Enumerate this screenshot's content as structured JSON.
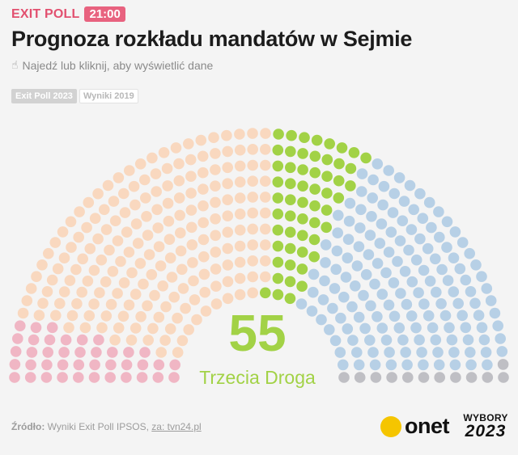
{
  "header": {
    "exit_label": "EXIT POLL",
    "time": "21:00",
    "title": "Prognoza rozkładu mandatów w Sejmie",
    "hint": "Najedź lub kliknij, aby wyświetlić dane",
    "hint_icon": "pointer-hand-icon"
  },
  "tabs": [
    {
      "label": "Exit Poll 2023",
      "active": true
    },
    {
      "label": "Wyniki 2019",
      "active": false
    }
  ],
  "highlight": {
    "seats": "55",
    "party": "Trzecia Droga"
  },
  "footer": {
    "source_label": "Źródło:",
    "source_text": "Wyniki Exit Poll IPSOS,",
    "source_link": "za: tvn24.pl",
    "onet_logo": "onet",
    "wybory_top": "WYBORY",
    "wybory_year": "2023"
  },
  "chart_data": {
    "type": "parliament",
    "total_seats": 460,
    "series": [
      {
        "seats": 40,
        "color": "#f0b6c4"
      },
      {
        "seats": 200,
        "color": "#f9d8bf"
      },
      {
        "seats": 55,
        "color": "#a2d246"
      },
      {
        "seats": 153,
        "color": "#b7d0e6"
      },
      {
        "seats": 12,
        "color": "#bfbfc4"
      }
    ]
  }
}
